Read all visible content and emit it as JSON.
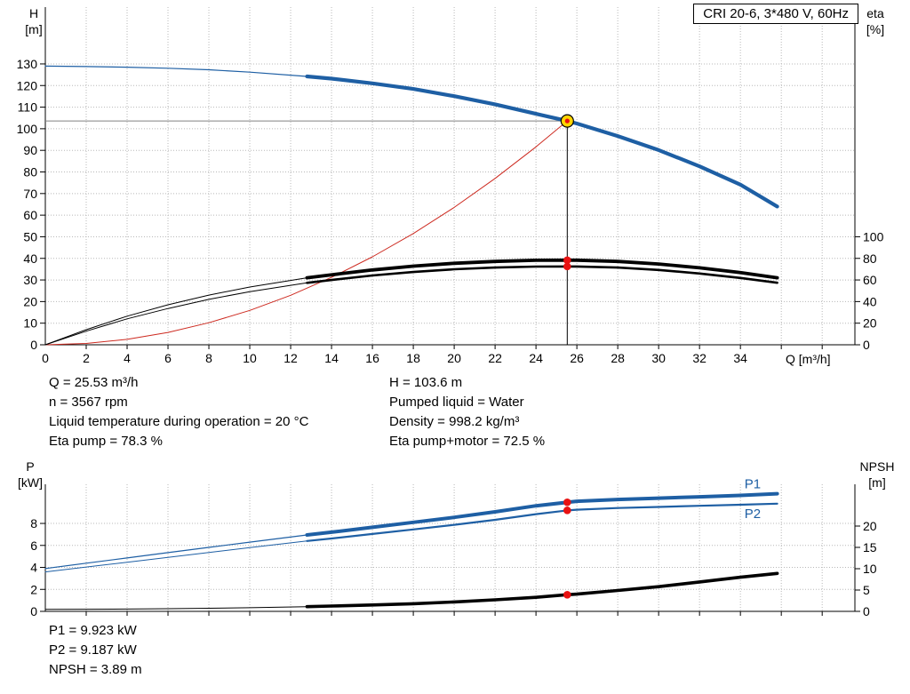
{
  "header": {
    "title": "CRI 20-6, 3*480 V, 60Hz"
  },
  "results": {
    "top_left": [
      "Q = 25.53 m³/h",
      "n = 3567 rpm",
      "Liquid temperature during operation = 20 °C",
      "Eta pump = 78.3 %"
    ],
    "top_right": [
      "H = 103.6 m",
      "Pumped liquid = Water",
      "Density = 998.2 kg/m³",
      "Eta pump+motor = 72.5 %"
    ],
    "bottom": [
      "P1 = 9.923 kW",
      "P2 = 9.187 kW",
      "NPSH = 3.89 m"
    ]
  },
  "colors": {
    "curve_blue": "#1e5fa4",
    "curve_red": "#cd2a20",
    "curve_black": "#000000",
    "dot_red": "#e81212",
    "op_yellow": "#ffd400",
    "crosshair_gray": "#808080",
    "grid_gray": "#b8b8b8"
  },
  "chart_data": [
    {
      "id": "qh-eta-chart",
      "type": "line",
      "title": "CRI 20-6, 3*480 V, 60Hz",
      "x_axis": {
        "label": "Q [m³/h]",
        "min": 0,
        "max": 39.6,
        "grid_ticks": [
          2,
          4,
          6,
          8,
          10,
          12,
          14,
          16,
          18,
          20,
          22,
          24,
          26,
          28,
          30,
          32,
          34,
          36,
          38
        ],
        "labeled_ticks": [
          0,
          2,
          4,
          6,
          8,
          10,
          12,
          14,
          16,
          18,
          20,
          22,
          24,
          26,
          28,
          30,
          32,
          34
        ]
      },
      "y_left": {
        "name": "H",
        "unit": "[m]",
        "min": 0,
        "max": 156.3,
        "ticks": [
          0,
          10,
          20,
          30,
          40,
          50,
          60,
          70,
          80,
          90,
          100,
          110,
          120,
          130
        ]
      },
      "y_right": {
        "name": "eta",
        "unit": "[%]",
        "min": 0,
        "max": 312.6,
        "ticks": [
          0,
          20,
          40,
          60,
          80,
          100
        ]
      },
      "operating_point": {
        "q": 25.53,
        "v": 103.6
      },
      "crosshair": {
        "q": 25.53,
        "v": 103.6
      },
      "dots": [
        {
          "axis": "right",
          "q": 25.53,
          "v": 78.3
        },
        {
          "axis": "right",
          "q": 25.53,
          "v": 72.5
        }
      ],
      "series": [
        {
          "name": "qh-curve",
          "axis": "left",
          "color": "#1e5fa4",
          "width_thin": 1.2,
          "width_thick": 4.2,
          "split": 12.8,
          "x": [
            0,
            2,
            4,
            6,
            8,
            10,
            12.8,
            14,
            16,
            18,
            20,
            22,
            24,
            25.53,
            26,
            28,
            30,
            32,
            34,
            35.8
          ],
          "y": [
            129,
            128.8,
            128.5,
            128,
            127.3,
            126.2,
            124.2,
            123.2,
            121,
            118.4,
            115.1,
            111.3,
            106.9,
            103.6,
            102.4,
            96.6,
            90.1,
            82.6,
            74.1,
            64
          ]
        },
        {
          "name": "system-curve",
          "axis": "left",
          "color": "#cd2a20",
          "width_thin": 1,
          "width_thick": 1,
          "split": null,
          "x": [
            0,
            2,
            4,
            6,
            8,
            10,
            12,
            14,
            16,
            18,
            20,
            22,
            24,
            25.53
          ],
          "y": [
            0,
            0.6,
            2.5,
            5.7,
            10.2,
            15.9,
            22.9,
            31.2,
            40.7,
            51.5,
            63.6,
            77,
            91.6,
            103.6
          ]
        },
        {
          "name": "eta-pump-curve",
          "axis": "right",
          "color": "#000000",
          "width_thin": 1,
          "width_thick": 3.8,
          "split": 12.8,
          "x": [
            0,
            2,
            4,
            6,
            8,
            10,
            12.8,
            14,
            16,
            18,
            20,
            22,
            24,
            25.53,
            26,
            28,
            30,
            32,
            34,
            35.8
          ],
          "y": [
            0,
            14,
            26.5,
            37,
            46,
            53.5,
            62,
            64.8,
            69.3,
            72.8,
            75.4,
            77.2,
            78.2,
            78.3,
            78.3,
            77.2,
            74.8,
            71.2,
            66.8,
            62
          ]
        },
        {
          "name": "eta-pump-motor-curve",
          "axis": "right",
          "color": "#000000",
          "width_thin": 1,
          "width_thick": 2.6,
          "split": 12.8,
          "x": [
            0,
            2,
            4,
            6,
            8,
            10,
            12.8,
            14,
            16,
            18,
            20,
            22,
            24,
            25.53,
            26,
            28,
            30,
            32,
            34,
            35.8
          ],
          "y": [
            0,
            12.6,
            24,
            33.6,
            42,
            49.2,
            57.3,
            60,
            64.2,
            67.4,
            69.9,
            71.5,
            72.4,
            72.5,
            72.5,
            71.5,
            69.3,
            66,
            61.9,
            57.4
          ]
        }
      ]
    },
    {
      "id": "power-npsh-chart",
      "type": "line",
      "x_axis": {
        "label": "",
        "min": 0,
        "max": 39.6,
        "grid_ticks": [
          2,
          4,
          6,
          8,
          10,
          12,
          14,
          16,
          18,
          20,
          22,
          24,
          26,
          28,
          30,
          32,
          34,
          36,
          38
        ],
        "labeled_ticks": []
      },
      "y_left": {
        "name": "P",
        "unit": "[kW]",
        "min": 0,
        "max": 11.56,
        "ticks": [
          0,
          2,
          4,
          6,
          8
        ]
      },
      "y_right": {
        "name": "NPSH",
        "unit": "[m]",
        "min": 0,
        "max": 29.79,
        "ticks": [
          0,
          5,
          10,
          15,
          20
        ]
      },
      "dots": [
        {
          "axis": "left",
          "q": 25.53,
          "v": 9.923
        },
        {
          "axis": "left",
          "q": 25.53,
          "v": 9.187
        },
        {
          "axis": "right",
          "q": 25.53,
          "v": 3.89
        }
      ],
      "labels": [
        {
          "text": "P1",
          "q": 34.6,
          "v": 11.2,
          "axis": "left",
          "color": "#1e5fa4"
        },
        {
          "text": "P2",
          "q": 34.6,
          "v": 8.5,
          "axis": "left",
          "color": "#1e5fa4"
        }
      ],
      "series": [
        {
          "name": "p1-curve",
          "axis": "left",
          "color": "#1e5fa4",
          "width_thin": 1.2,
          "width_thick": 4,
          "split": 12.8,
          "x": [
            0,
            2,
            4,
            6,
            8,
            10,
            12.8,
            14,
            16,
            18,
            20,
            22,
            24,
            25.53,
            26,
            28,
            30,
            32,
            34,
            35.8
          ],
          "y": [
            3.9,
            4.38,
            4.86,
            5.34,
            5.82,
            6.3,
            6.95,
            7.2,
            7.65,
            8.1,
            8.55,
            9.05,
            9.6,
            9.923,
            10.02,
            10.18,
            10.3,
            10.42,
            10.55,
            10.7
          ]
        },
        {
          "name": "p2-curve",
          "axis": "left",
          "color": "#1e5fa4",
          "width_thin": 1,
          "width_thick": 2.2,
          "split": 12.8,
          "x": [
            0,
            2,
            4,
            6,
            8,
            10,
            12.8,
            14,
            16,
            18,
            20,
            22,
            24,
            25.53,
            26,
            28,
            30,
            32,
            34,
            35.8
          ],
          "y": [
            3.59,
            4.03,
            4.47,
            4.91,
            5.35,
            5.8,
            6.4,
            6.63,
            7.04,
            7.45,
            7.87,
            8.33,
            8.84,
            9.187,
            9.25,
            9.4,
            9.5,
            9.6,
            9.7,
            9.8
          ]
        },
        {
          "name": "npsh-curve",
          "axis": "right",
          "color": "#000000",
          "width_thin": 1,
          "width_thick": 3.6,
          "split": 12.8,
          "x": [
            0,
            2,
            4,
            6,
            8,
            10,
            12.8,
            14,
            16,
            18,
            20,
            22,
            24,
            25.53,
            26,
            28,
            30,
            32,
            34,
            35.8
          ],
          "y": [
            0.45,
            0.5,
            0.55,
            0.62,
            0.72,
            0.85,
            1.1,
            1.25,
            1.5,
            1.8,
            2.2,
            2.7,
            3.3,
            3.89,
            4.05,
            4.9,
            5.8,
            6.9,
            8,
            8.9
          ]
        }
      ]
    }
  ]
}
